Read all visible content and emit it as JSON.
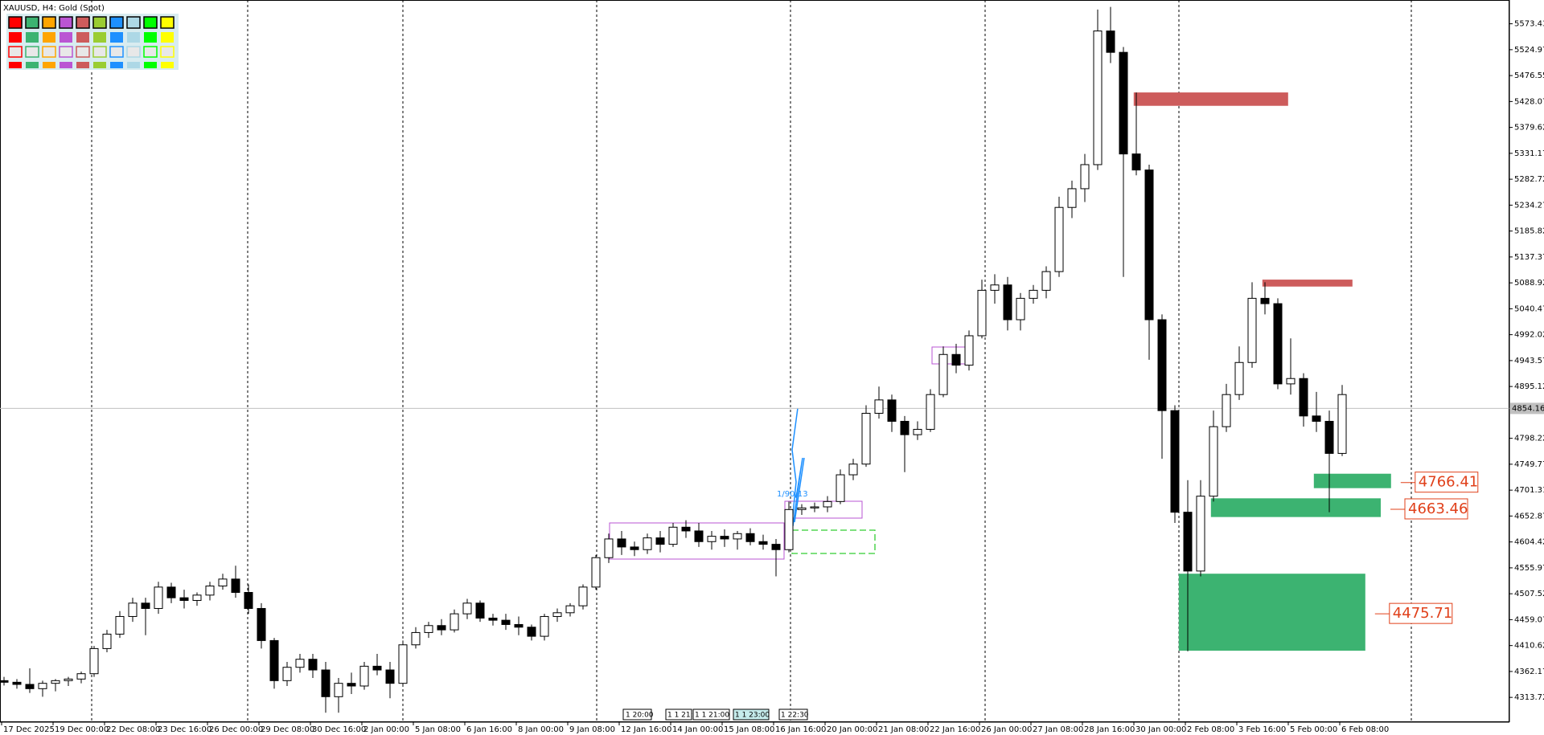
{
  "chart_data": {
    "type": "candlestick",
    "title": "XAUUSD, H4:  Gold (Spot)",
    "bull_color": "#ffffff",
    "bear_color": "#000000",
    "ylim": [
      4267.4,
      5617.9
    ],
    "yticks": [
      5573.43,
      5524.97,
      5476.55,
      5428.07,
      5379.62,
      5331.17,
      5282.72,
      5234.27,
      5185.82,
      5137.37,
      5088.92,
      5040.47,
      4992.02,
      4943.57,
      4895.12,
      4798.22,
      4749.77,
      4701.31,
      4652.87,
      4604.42,
      4555.97,
      4507.52,
      4459.07,
      4410.62,
      4362.17,
      4313.72
    ],
    "current_price": 4854.16,
    "categories": [
      "17 Dec 2025",
      null,
      null,
      null,
      "19 Dec 00:00",
      null,
      null,
      null,
      "22 Dec 08:00",
      null,
      null,
      null,
      "23 Dec 16:00",
      null,
      null,
      null,
      "26 Dec 00:00",
      null,
      null,
      null,
      "29 Dec 08:00",
      null,
      null,
      null,
      "30 Dec 16:00",
      null,
      null,
      null,
      "2 Jan 00:00",
      null,
      null,
      null,
      "5 Jan 08:00",
      null,
      null,
      null,
      "6 Jan 16:00",
      null,
      null,
      null,
      "8 Jan 00:00",
      null,
      null,
      null,
      "9 Jan 08:00",
      null,
      null,
      null,
      "12 Jan 16:00",
      null,
      null,
      null,
      "14 Jan 00:00",
      null,
      null,
      null,
      "15 Jan 08:00",
      null,
      null,
      null,
      "16 Jan 16:00",
      null,
      null,
      null,
      "20 Jan 00:00",
      null,
      null,
      null,
      "21 Jan 08:00",
      null,
      null,
      null,
      "22 Jan 16:00",
      null,
      null,
      null,
      "26 Jan 00:00",
      null,
      null,
      null,
      "27 Jan 08:00",
      null,
      null,
      null,
      "28 Jan 16:00",
      null,
      null,
      null,
      "30 Jan 00:00",
      null,
      null,
      null,
      "2 Feb 08:00",
      null,
      null,
      null,
      "3 Feb 16:00",
      null,
      null,
      null,
      "5 Feb 00:00",
      null,
      null,
      null,
      "6 Feb 08:00"
    ],
    "ohlc": [
      [
        4345,
        4352,
        4336,
        4342
      ],
      [
        4342,
        4348,
        4330,
        4338
      ],
      [
        4338,
        4368,
        4322,
        4330
      ],
      [
        4330,
        4345,
        4315,
        4340
      ],
      [
        4340,
        4348,
        4325,
        4345
      ],
      [
        4345,
        4352,
        4335,
        4348
      ],
      [
        4348,
        4362,
        4340,
        4358
      ],
      [
        4358,
        4410,
        4352,
        4405
      ],
      [
        4405,
        4440,
        4398,
        4432
      ],
      [
        4432,
        4475,
        4425,
        4465
      ],
      [
        4465,
        4500,
        4455,
        4490
      ],
      [
        4490,
        4500,
        4430,
        4480
      ],
      [
        4480,
        4530,
        4470,
        4520
      ],
      [
        4520,
        4528,
        4490,
        4500
      ],
      [
        4500,
        4515,
        4480,
        4495
      ],
      [
        4495,
        4510,
        4485,
        4505
      ],
      [
        4505,
        4530,
        4495,
        4522
      ],
      [
        4522,
        4545,
        4515,
        4535
      ],
      [
        4535,
        4560,
        4500,
        4510
      ],
      [
        4510,
        4525,
        4470,
        4480
      ],
      [
        4480,
        4490,
        4405,
        4420
      ],
      [
        4420,
        4425,
        4330,
        4345
      ],
      [
        4345,
        4380,
        4335,
        4370
      ],
      [
        4370,
        4395,
        4360,
        4385
      ],
      [
        4385,
        4395,
        4350,
        4365
      ],
      [
        4365,
        4380,
        4285,
        4315
      ],
      [
        4315,
        4350,
        4285,
        4340
      ],
      [
        4340,
        4360,
        4320,
        4335
      ],
      [
        4335,
        4380,
        4328,
        4372
      ],
      [
        4372,
        4395,
        4355,
        4365
      ],
      [
        4365,
        4380,
        4312,
        4340
      ],
      [
        4340,
        4420,
        4335,
        4412
      ],
      [
        4412,
        4445,
        4405,
        4435
      ],
      [
        4435,
        4455,
        4425,
        4448
      ],
      [
        4448,
        4460,
        4430,
        4440
      ],
      [
        4440,
        4478,
        4435,
        4470
      ],
      [
        4470,
        4498,
        4460,
        4490
      ],
      [
        4490,
        4495,
        4455,
        4462
      ],
      [
        4462,
        4470,
        4448,
        4458
      ],
      [
        4458,
        4470,
        4440,
        4450
      ],
      [
        4450,
        4465,
        4430,
        4445
      ],
      [
        4445,
        4450,
        4420,
        4428
      ],
      [
        4428,
        4470,
        4420,
        4465
      ],
      [
        4465,
        4480,
        4455,
        4472
      ],
      [
        4472,
        4490,
        4465,
        4485
      ],
      [
        4485,
        4525,
        4478,
        4520
      ],
      [
        4520,
        4580,
        4515,
        4575
      ],
      [
        4575,
        4620,
        4565,
        4610
      ],
      [
        4610,
        4625,
        4580,
        4595
      ],
      [
        4595,
        4605,
        4578,
        4590
      ],
      [
        4590,
        4620,
        4582,
        4612
      ],
      [
        4612,
        4625,
        4585,
        4600
      ],
      [
        4600,
        4640,
        4595,
        4632
      ],
      [
        4632,
        4645,
        4612,
        4625
      ],
      [
        4625,
        4640,
        4595,
        4605
      ],
      [
        4605,
        4625,
        4590,
        4615
      ],
      [
        4615,
        4628,
        4595,
        4610
      ],
      [
        4610,
        4625,
        4590,
        4620
      ],
      [
        4620,
        4630,
        4598,
        4605
      ],
      [
        4605,
        4618,
        4590,
        4600
      ],
      [
        4600,
        4610,
        4540,
        4590
      ],
      [
        4590,
        4680,
        4585,
        4665
      ],
      [
        4665,
        4675,
        4655,
        4668
      ],
      [
        4668,
        4678,
        4660,
        4670
      ],
      [
        4670,
        4690,
        4660,
        4680
      ],
      [
        4680,
        4740,
        4675,
        4730
      ],
      [
        4730,
        4760,
        4720,
        4750
      ],
      [
        4750,
        4860,
        4745,
        4845
      ],
      [
        4845,
        4895,
        4835,
        4870
      ],
      [
        4870,
        4880,
        4810,
        4830
      ],
      [
        4830,
        4840,
        4735,
        4805
      ],
      [
        4805,
        4830,
        4795,
        4815
      ],
      [
        4815,
        4890,
        4810,
        4880
      ],
      [
        4880,
        4970,
        4875,
        4955
      ],
      [
        4955,
        4975,
        4920,
        4935
      ],
      [
        4935,
        5000,
        4925,
        4990
      ],
      [
        4990,
        5095,
        4985,
        5075
      ],
      [
        5075,
        5105,
        5050,
        5085
      ],
      [
        5085,
        5100,
        5000,
        5020
      ],
      [
        5020,
        5070,
        5000,
        5060
      ],
      [
        5060,
        5085,
        5050,
        5075
      ],
      [
        5075,
        5120,
        5060,
        5110
      ],
      [
        5110,
        5250,
        5100,
        5230
      ],
      [
        5230,
        5280,
        5210,
        5265
      ],
      [
        5265,
        5330,
        5240,
        5310
      ],
      [
        5310,
        5600,
        5300,
        5560
      ],
      [
        5560,
        5605,
        5500,
        5520
      ],
      [
        5520,
        5530,
        5100,
        5330
      ],
      [
        5330,
        5445,
        5290,
        5300
      ],
      [
        5300,
        5310,
        4945,
        5020
      ],
      [
        5020,
        5030,
        4760,
        4850
      ],
      [
        4850,
        4860,
        4640,
        4660
      ],
      [
        4660,
        4720,
        4400,
        4550
      ],
      [
        4550,
        4720,
        4540,
        4690
      ],
      [
        4690,
        4850,
        4680,
        4820
      ],
      [
        4820,
        4900,
        4810,
        4880
      ],
      [
        4880,
        4970,
        4870,
        4940
      ],
      [
        4940,
        5090,
        4930,
        5060
      ],
      [
        5060,
        5090,
        5030,
        5050
      ],
      [
        5050,
        5060,
        4890,
        4900
      ],
      [
        4900,
        4985,
        4880,
        4910
      ],
      [
        4910,
        4920,
        4820,
        4840
      ],
      [
        4840,
        4885,
        4810,
        4830
      ],
      [
        4830,
        4850,
        4660,
        4770
      ],
      [
        4770,
        4898,
        4765,
        4880
      ]
    ],
    "zones": [
      {
        "color": "#cd5c5c",
        "from": 87.8,
        "to": 99.8,
        "top": 5445,
        "bottom": 5420
      },
      {
        "color": "#cd5c5c",
        "from": 97.8,
        "to": 104.8,
        "top": 5095,
        "bottom": 5082
      },
      {
        "color": "#3cb371",
        "from": 101.8,
        "to": 107.8,
        "top": 4732,
        "bottom": 4705,
        "level": 4766.41
      },
      {
        "color": "#3cb371",
        "from": 93.8,
        "to": 107,
        "top": 4686,
        "bottom": 4651,
        "level": 4663.46
      },
      {
        "color": "#3cb371",
        "from": 91.3,
        "to": 105.8,
        "top": 4545,
        "bottom": 4401,
        "level": 4475.71
      }
    ],
    "annotation": "1/90/13",
    "time_markers": [
      "1 20:00",
      "1 1 21:00",
      "1 1 21:00",
      "1 1 23:00",
      "1 22:30"
    ]
  }
}
